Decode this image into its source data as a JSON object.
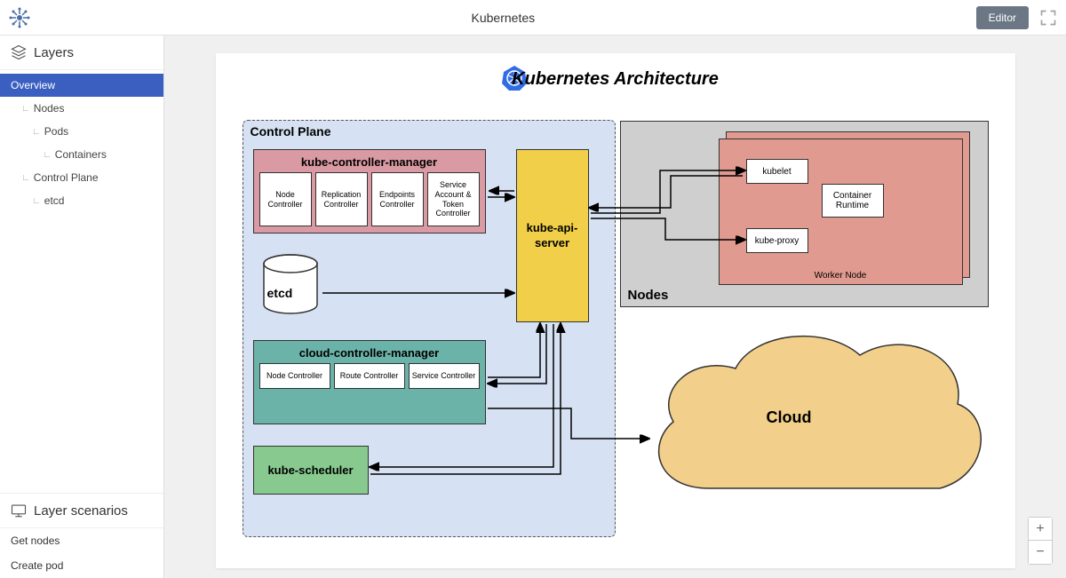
{
  "header": {
    "title": "Kubernetes",
    "editor_button": "Editor"
  },
  "sidebar": {
    "layers_label": "Layers",
    "tree": [
      {
        "label": "Overview",
        "depth": 0,
        "active": true
      },
      {
        "label": "Nodes",
        "depth": 1,
        "active": false
      },
      {
        "label": "Pods",
        "depth": 2,
        "active": false
      },
      {
        "label": "Containers",
        "depth": 3,
        "active": false
      },
      {
        "label": "Control Plane",
        "depth": 1,
        "active": false
      },
      {
        "label": "etcd",
        "depth": 2,
        "active": false
      }
    ],
    "scenarios_label": "Layer scenarios",
    "scenarios": [
      {
        "label": "Get nodes"
      },
      {
        "label": "Create pod"
      }
    ]
  },
  "diagram": {
    "title": "Kubernetes Architecture",
    "control_plane": {
      "label": "Control Plane",
      "bg_color": "#d6e2f3",
      "border_color": "#555"
    },
    "kcm": {
      "label": "kube-controller-manager",
      "bg_color": "#d99aa3",
      "items": [
        "Node Controller",
        "Replication Controller",
        "Endpoints Controller",
        "Service Account & Token Controller"
      ]
    },
    "etcd": {
      "label": "etcd"
    },
    "ccm": {
      "label": "cloud-controller-manager",
      "bg_color": "#6bb3a8",
      "items": [
        "Node Controller",
        "Route Controller",
        "Service Controller"
      ]
    },
    "ksched": {
      "label": "kube-scheduler",
      "bg_color": "#87c98f"
    },
    "kapi": {
      "label": "kube-api-server",
      "bg_color": "#f2cf49"
    },
    "nodes": {
      "label": "Nodes",
      "bg_color": "#cfcfcf",
      "worker_label": "Worker Node",
      "worker_bg": "#e09a8f",
      "items": [
        "kubelet",
        "Container Runtime",
        "kube-proxy"
      ]
    },
    "cloud": {
      "label": "Cloud",
      "fill": "#f2cf8a"
    }
  }
}
